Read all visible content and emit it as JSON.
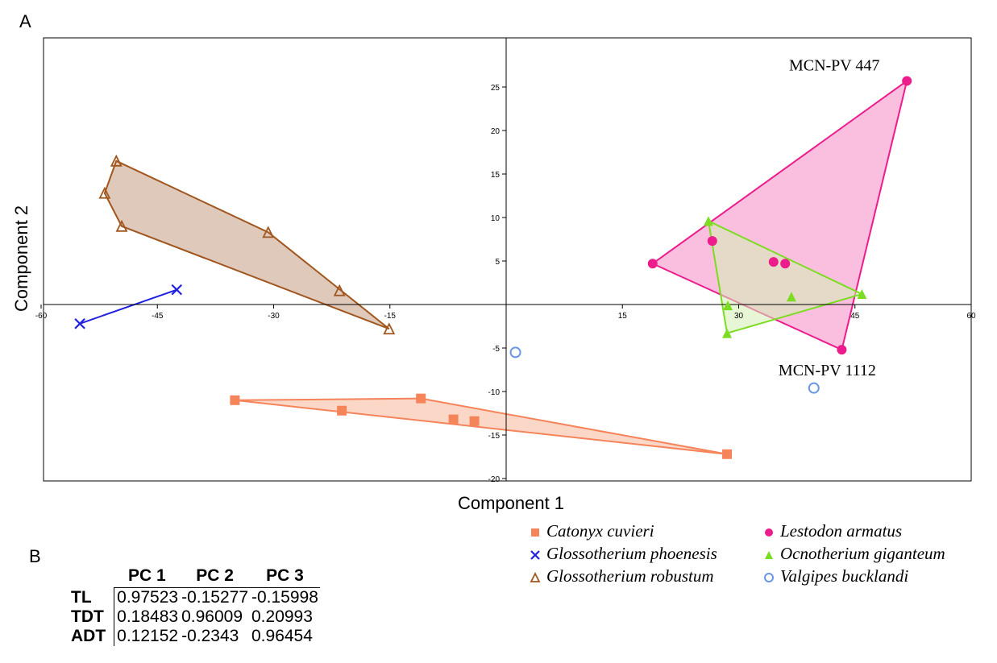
{
  "panel_a_label": "A",
  "panel_b_label": "B",
  "colors": {
    "catonyx": "#f5845a",
    "phoenesis": "#2020e0",
    "robustum": "#a0561e",
    "lestodon": "#ec1c8c",
    "ocnotherium": "#7cdc22",
    "valgipes": "#6a96e8",
    "axis": "#000000"
  },
  "chart_data": {
    "type": "scatter",
    "title": "",
    "xlabel": "Component 1",
    "ylabel": "Component 2",
    "xlim": [
      -60,
      60
    ],
    "ylim": [
      -20,
      30
    ],
    "xticks": [
      -60,
      -45,
      -30,
      -15,
      15,
      30,
      45,
      60
    ],
    "yticks": [
      -20,
      -15,
      -10,
      -5,
      5,
      10,
      15,
      20,
      25
    ],
    "convex_hulls": true,
    "series": [
      {
        "name": "Catonyx cuvieri",
        "marker": "square",
        "color": "#f5845a",
        "fill": "#fbd3c2",
        "points": [
          [
            -35,
            -11
          ],
          [
            -21.2,
            -12.2
          ],
          [
            -11,
            -10.8
          ],
          [
            -6.8,
            -13.2
          ],
          [
            -4.1,
            -13.4
          ],
          [
            28.5,
            -17.2
          ]
        ]
      },
      {
        "name": "Glossotherium phoenesis",
        "marker": "x",
        "color": "#2020e0",
        "fill": "none",
        "points": [
          [
            -55,
            -2.2
          ],
          [
            -42.5,
            1.7
          ]
        ]
      },
      {
        "name": "Glossotherium robustum",
        "marker": "triangle-open",
        "color": "#a0561e",
        "fill": "#dcc3b3",
        "points": [
          [
            -50.3,
            16.5
          ],
          [
            -51.8,
            12.8
          ],
          [
            -49.6,
            9
          ],
          [
            -30.7,
            8.3
          ],
          [
            -21.5,
            1.6
          ],
          [
            -15.1,
            -2.8
          ]
        ]
      },
      {
        "name": "Lestodon armatus",
        "marker": "circle",
        "color": "#ec1c8c",
        "fill": "#f9b8dc",
        "points": [
          [
            51.7,
            25.7
          ],
          [
            18.9,
            4.7
          ],
          [
            26.6,
            7.3
          ],
          [
            34.5,
            4.9
          ],
          [
            36,
            4.7
          ],
          [
            43.3,
            -5.2
          ]
        ]
      },
      {
        "name": "Ocnotherium giganteum",
        "marker": "triangle",
        "color": "#7cdc22",
        "fill": "#d4f0b4",
        "points": [
          [
            26.1,
            9.6
          ],
          [
            28.6,
            -0.1
          ],
          [
            28.5,
            -3.3
          ],
          [
            36.8,
            0.9
          ],
          [
            45.9,
            1.2
          ]
        ]
      },
      {
        "name": "Valgipes bucklandi",
        "marker": "circle-open",
        "color": "#6a96e8",
        "fill": "none",
        "points": [
          [
            1.2,
            -5.5
          ],
          [
            39.7,
            -9.6
          ]
        ]
      }
    ],
    "annotations": [
      {
        "text": "MCN-PV 447",
        "x": 51.7,
        "y": 25.7
      },
      {
        "text": "MCN-PV 1112",
        "x": 43.3,
        "y": -5.2
      }
    ],
    "legend_placement": "bottom-right"
  },
  "loadings_table": {
    "columns": [
      "PC 1",
      "PC 2",
      "PC 3"
    ],
    "rows": [
      {
        "label": "TL",
        "values": [
          "0.97523",
          "-0.15277",
          "-0.15998"
        ]
      },
      {
        "label": "TDT",
        "values": [
          "0.18483",
          "0.96009",
          "0.20993"
        ]
      },
      {
        "label": "ADT",
        "values": [
          "0.12152",
          "-0.2343",
          "0.96454"
        ]
      }
    ]
  }
}
